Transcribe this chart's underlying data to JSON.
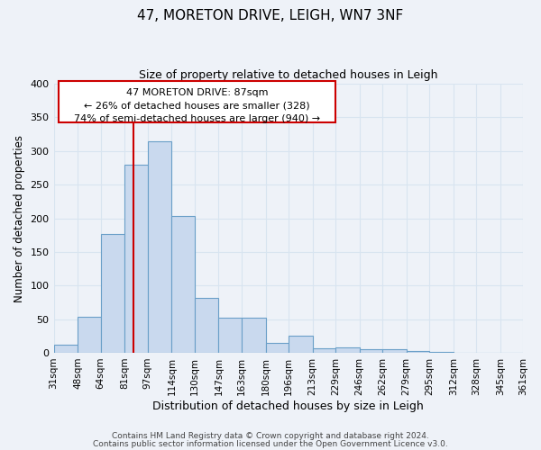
{
  "title": "47, MORETON DRIVE, LEIGH, WN7 3NF",
  "subtitle": "Size of property relative to detached houses in Leigh",
  "xlabel": "Distribution of detached houses by size in Leigh",
  "ylabel": "Number of detached properties",
  "bar_values": [
    12,
    54,
    176,
    280,
    315,
    203,
    81,
    52,
    52,
    15,
    25,
    7,
    8,
    5,
    5,
    2,
    1,
    0,
    0,
    0
  ],
  "bin_edges": [
    31,
    48,
    64,
    81,
    97,
    114,
    130,
    147,
    163,
    180,
    196,
    213,
    229,
    246,
    262,
    279,
    295,
    312,
    328,
    345,
    361
  ],
  "bin_labels": [
    "31sqm",
    "48sqm",
    "64sqm",
    "81sqm",
    "97sqm",
    "114sqm",
    "130sqm",
    "147sqm",
    "163sqm",
    "180sqm",
    "196sqm",
    "213sqm",
    "229sqm",
    "246sqm",
    "262sqm",
    "279sqm",
    "295sqm",
    "312sqm",
    "328sqm",
    "345sqm",
    "361sqm"
  ],
  "bar_color": "#c9d9ee",
  "bar_edge_color": "#6a9fc8",
  "vline_x": 87,
  "vline_color": "#cc0000",
  "ylim": [
    0,
    400
  ],
  "yticks": [
    0,
    50,
    100,
    150,
    200,
    250,
    300,
    350,
    400
  ],
  "annotation_title": "47 MORETON DRIVE: 87sqm",
  "annotation_line1": "← 26% of detached houses are smaller (328)",
  "annotation_line2": "74% of semi-detached houses are larger (940) →",
  "annotation_box_color": "#cc0000",
  "footer_line1": "Contains HM Land Registry data © Crown copyright and database right 2024.",
  "footer_line2": "Contains public sector information licensed under the Open Government Licence v3.0.",
  "bg_color": "#eef2f8",
  "grid_color": "#d8e4f0",
  "plot_bg_color": "#eef2f8"
}
